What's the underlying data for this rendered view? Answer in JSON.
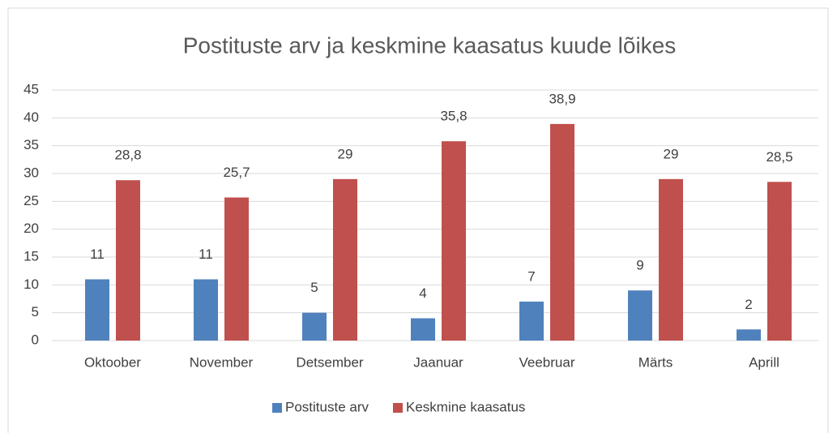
{
  "chart_data": {
    "type": "bar",
    "title": "Postituste arv ja keskmine kaasatus kuude lõikes",
    "categories": [
      "Oktoober",
      "November",
      "Detsember",
      "Jaanuar",
      "Veebruar",
      "Märts",
      "Aprill"
    ],
    "series": [
      {
        "name": "Postituste arv",
        "color": "#4f81bd",
        "values": [
          11,
          11,
          5,
          4,
          7,
          9,
          2
        ]
      },
      {
        "name": "Keskmine kaasatus",
        "color": "#c0504d",
        "values": [
          28.8,
          25.7,
          29,
          35.8,
          38.9,
          29,
          28.5
        ],
        "value_labels": [
          "28,8",
          "25,7",
          "29",
          "35,8",
          "38,9",
          "29",
          "28,5"
        ]
      }
    ],
    "ylim": [
      0,
      45
    ],
    "yticks": [
      0,
      5,
      10,
      15,
      20,
      25,
      30,
      35,
      40,
      45
    ],
    "grid": true,
    "legend": "bottom"
  }
}
